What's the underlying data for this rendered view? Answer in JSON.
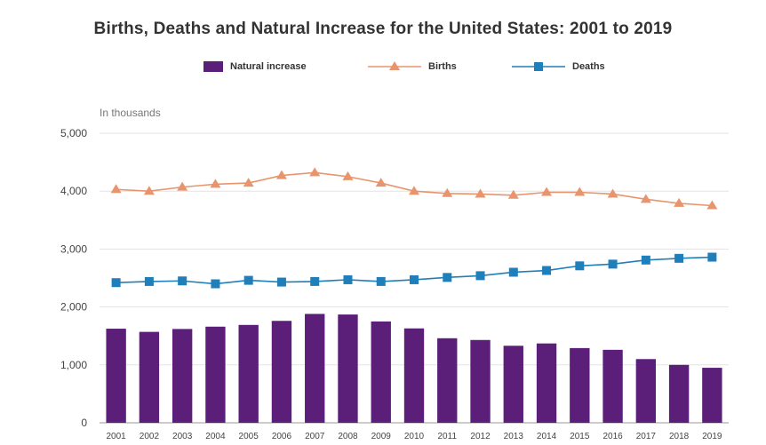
{
  "chart_data": {
    "type": "bar+line",
    "title": "Births, Deaths and Natural Increase for the United States: 2001 to 2019",
    "ylabel": "In thousands",
    "xlabel": "",
    "ylim": [
      0,
      5000
    ],
    "yticks": [
      0,
      1000,
      2000,
      3000,
      4000,
      5000
    ],
    "ytick_labels": [
      "0",
      "1,000",
      "2,000",
      "3,000",
      "4,000",
      "5,000"
    ],
    "grid": true,
    "legend_position": "top-center",
    "categories": [
      "2001",
      "2002",
      "2003",
      "2004",
      "2005",
      "2006",
      "2007",
      "2008",
      "2009",
      "2010",
      "2011",
      "2012",
      "2013",
      "2014",
      "2015",
      "2016",
      "2017",
      "2018",
      "2019"
    ],
    "series": [
      {
        "name": "Natural increase",
        "type": "bar",
        "color": "#5b1f7a",
        "values": [
          1625,
          1570,
          1620,
          1660,
          1690,
          1760,
          1880,
          1870,
          1750,
          1630,
          1460,
          1430,
          1330,
          1370,
          1290,
          1260,
          1100,
          1000,
          950
        ]
      },
      {
        "name": "Births",
        "type": "line",
        "marker": "triangle",
        "color": "#e8956d",
        "values": [
          4030,
          4000,
          4070,
          4120,
          4140,
          4270,
          4320,
          4250,
          4140,
          4000,
          3960,
          3950,
          3930,
          3980,
          3980,
          3950,
          3860,
          3790,
          3750
        ]
      },
      {
        "name": "Deaths",
        "type": "line",
        "marker": "square",
        "color": "#1f7fba",
        "values": [
          2420,
          2440,
          2450,
          2400,
          2460,
          2430,
          2440,
          2470,
          2440,
          2470,
          2510,
          2540,
          2600,
          2630,
          2710,
          2740,
          2810,
          2840,
          2860
        ]
      }
    ]
  }
}
